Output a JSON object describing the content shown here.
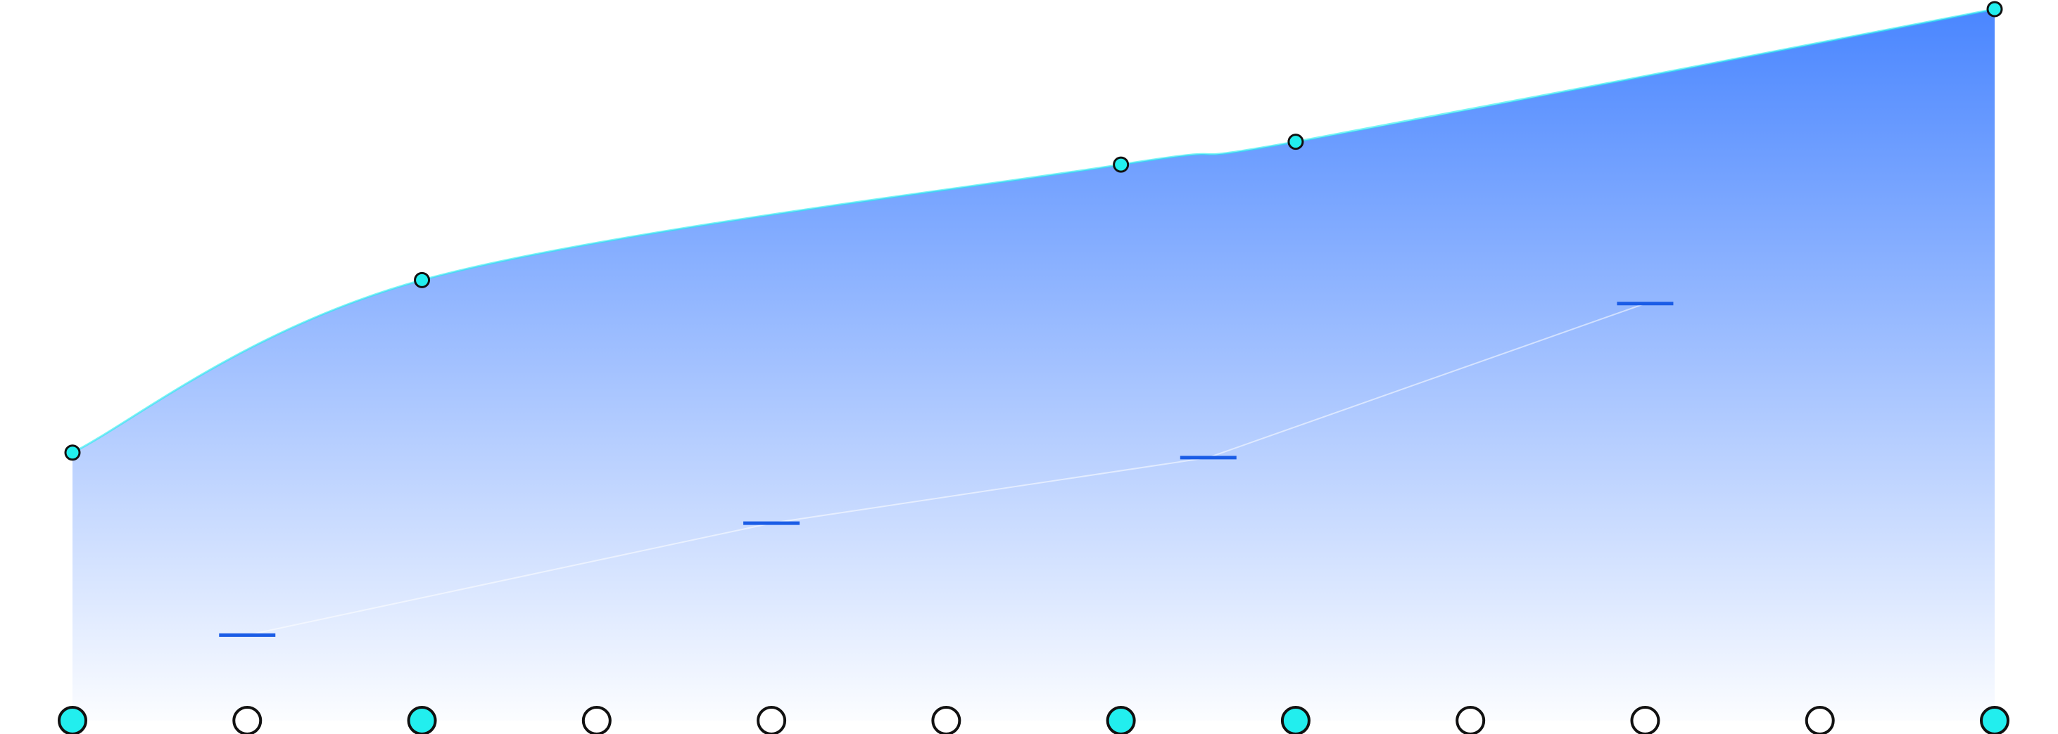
{
  "chart_data": {
    "type": "area",
    "xlim": [
      0,
      11
    ],
    "xticks": [
      0,
      1,
      2,
      3,
      4,
      5,
      6,
      7,
      8,
      9,
      10,
      11
    ],
    "ylim": [
      0,
      100
    ],
    "series": [
      {
        "type": "area",
        "color": "#4a86ff",
        "point_color": "#22eeee",
        "x": [
          0,
          2,
          6,
          7,
          11
        ],
        "values": [
          37.6,
          61.8,
          78.0,
          81.2,
          99.8
        ]
      },
      {
        "type": "line",
        "color": "#1a5ce6",
        "x": [
          1,
          4,
          6.5,
          9
        ],
        "values": [
          12.0,
          27.7,
          36.9,
          58.5
        ]
      }
    ]
  }
}
